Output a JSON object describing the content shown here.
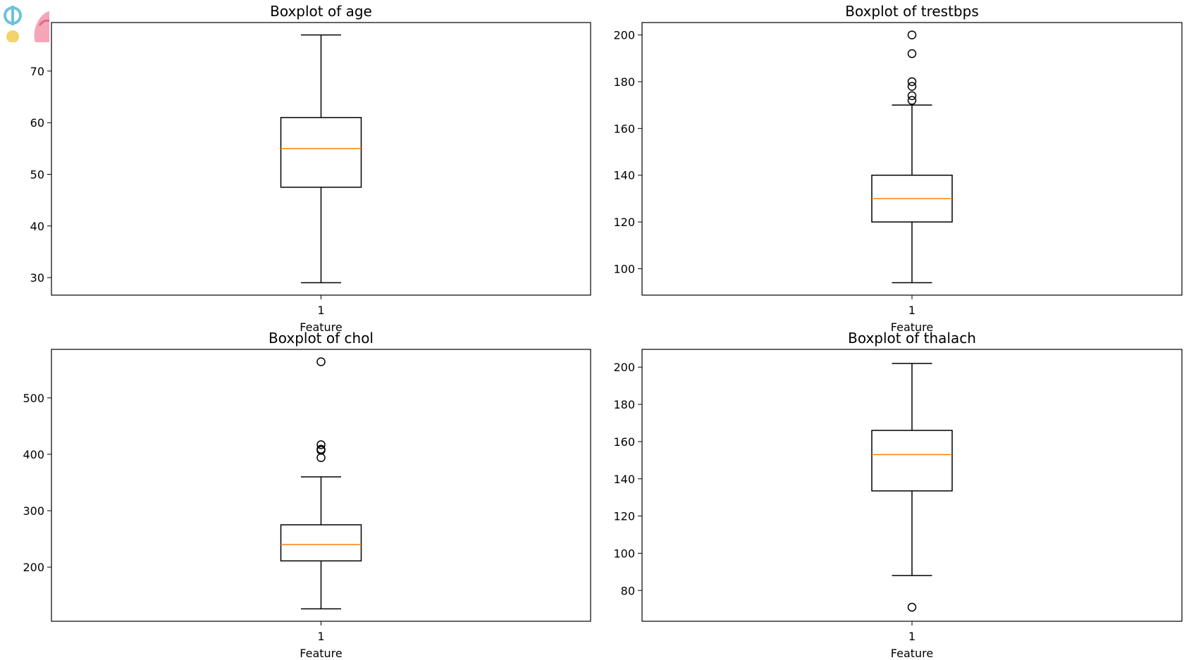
{
  "colors": {
    "median": "#ff7f0e",
    "box": "#000000",
    "background": "#ffffff"
  },
  "chart_data": [
    {
      "type": "boxplot",
      "title": "Boxplot of age",
      "xlabel": "Feature",
      "ylabel": "",
      "categories": [
        "1"
      ],
      "ylim": [
        26.6,
        79.4
      ],
      "yticks": [
        30,
        40,
        50,
        60,
        70
      ],
      "box": {
        "whisker_low": 29,
        "q1": 47.5,
        "median": 55,
        "q3": 61,
        "whisker_high": 77
      },
      "outliers": []
    },
    {
      "type": "boxplot",
      "title": "Boxplot of trestbps",
      "xlabel": "Feature",
      "ylabel": "",
      "categories": [
        "1"
      ],
      "ylim": [
        88.7,
        205.3
      ],
      "yticks": [
        100,
        120,
        140,
        160,
        180,
        200
      ],
      "box": {
        "whisker_low": 94,
        "q1": 120,
        "median": 130,
        "q3": 140,
        "whisker_high": 170
      },
      "outliers": [
        172,
        174,
        178,
        180,
        192,
        200
      ]
    },
    {
      "type": "boxplot",
      "title": "Boxplot of chol",
      "xlabel": "Feature",
      "ylabel": "",
      "categories": [
        "1"
      ],
      "ylim": [
        104,
        586
      ],
      "yticks": [
        200,
        300,
        400,
        500
      ],
      "box": {
        "whisker_low": 126,
        "q1": 211,
        "median": 240,
        "q3": 275,
        "whisker_high": 360
      },
      "outliers": [
        394,
        407,
        409,
        417,
        564
      ]
    },
    {
      "type": "boxplot",
      "title": "Boxplot of thalach",
      "xlabel": "Feature",
      "ylabel": "",
      "categories": [
        "1"
      ],
      "ylim": [
        63.45,
        209.55
      ],
      "yticks": [
        80,
        100,
        120,
        140,
        160,
        180,
        200
      ],
      "box": {
        "whisker_low": 88,
        "q1": 133.5,
        "median": 153,
        "q3": 166,
        "whisker_high": 202
      },
      "outliers": [
        71
      ]
    }
  ]
}
